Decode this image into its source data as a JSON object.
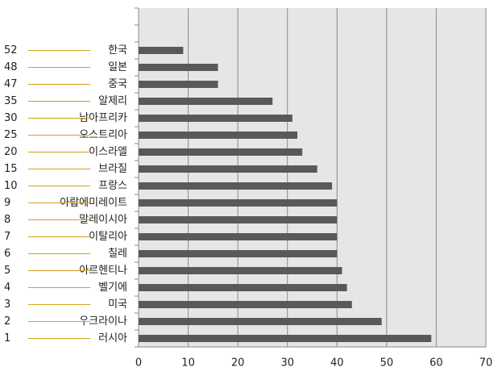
{
  "chart_data": {
    "type": "bar",
    "orientation": "horizontal",
    "categories": [
      null,
      null,
      "한국",
      "일본",
      "중국",
      "알제리",
      "남아프리카",
      "오스트리아",
      "이스라엘",
      "브라질",
      "프랑스",
      "아랍에미레이트",
      "말레이시아",
      "이탈리아",
      "칠레",
      "아르헨티나",
      "벨기에",
      "미국",
      "우크라이나",
      "러시아"
    ],
    "ranks": [
      null,
      null,
      52,
      48,
      47,
      35,
      30,
      25,
      20,
      15,
      10,
      9,
      8,
      7,
      6,
      5,
      4,
      3,
      2,
      1
    ],
    "values": [
      null,
      null,
      9,
      16,
      16,
      27,
      31,
      32,
      33,
      36,
      39,
      40,
      40,
      40,
      40,
      41,
      42,
      43,
      49,
      59
    ],
    "color": "#595959",
    "rank_color": "#d4a017",
    "xlim": [
      0,
      70
    ],
    "xticks": [
      0,
      10,
      20,
      30,
      40,
      50,
      60,
      70
    ],
    "grid": true
  }
}
